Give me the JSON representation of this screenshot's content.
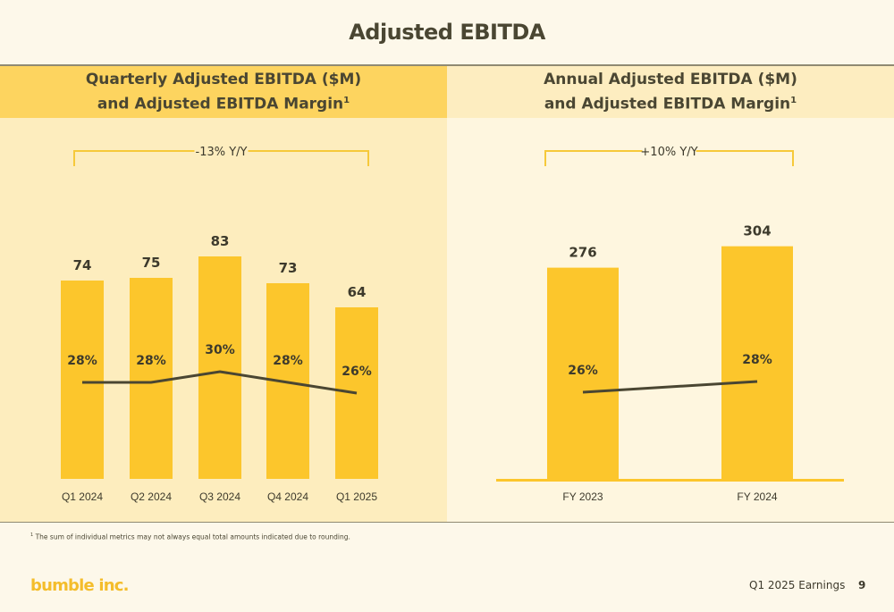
{
  "page": {
    "title": "Adjusted EBITDA",
    "footnote_marker": "1",
    "footnote": "The sum of individual metrics may not always equal total amounts indicated due to rounding.",
    "logo": "bumble inc.",
    "footer_label": "Q1 2025 Earnings",
    "page_number": "9"
  },
  "colors": {
    "bar": "#fcc62c",
    "margin_line": "#4a4632",
    "bracket": "#f6c93a",
    "left_header_bg": "#fdd45f",
    "left_panel_bg": "#fdedbe",
    "right_panel_bg": "#fef6df"
  },
  "panels": {
    "left": {
      "title_line1": "Quarterly Adjusted EBITDA ($M)",
      "title_line2": "and Adjusted EBITDA Margin",
      "title_sup": "1"
    },
    "right": {
      "title_line1": "Annual Adjusted EBITDA ($M)",
      "title_line2": "and Adjusted EBITDA Margin",
      "title_sup": "1"
    }
  },
  "chart_data": [
    {
      "type": "bar",
      "categories": [
        "Q1 2024",
        "Q2 2024",
        "Q3 2024",
        "Q4 2024",
        "Q1 2025"
      ],
      "series": [
        {
          "values": [
            74,
            75,
            83,
            73,
            64
          ],
          "value_labels": [
            "74",
            "75",
            "83",
            "73",
            "64"
          ]
        },
        {
          "type": "line",
          "values": [
            28,
            28,
            30,
            28,
            26
          ],
          "value_labels": [
            "28%",
            "28%",
            "30%",
            "28%",
            "26%"
          ]
        }
      ],
      "annotation": "-13% Y/Y"
    },
    {
      "type": "bar",
      "categories": [
        "FY 2023",
        "FY 2024"
      ],
      "series": [
        {
          "values": [
            276,
            304
          ],
          "value_labels": [
            "276",
            "304"
          ]
        },
        {
          "type": "line",
          "values": [
            26,
            28
          ],
          "value_labels": [
            "26%",
            "28%"
          ]
        }
      ],
      "annotation": "+10% Y/Y"
    }
  ]
}
